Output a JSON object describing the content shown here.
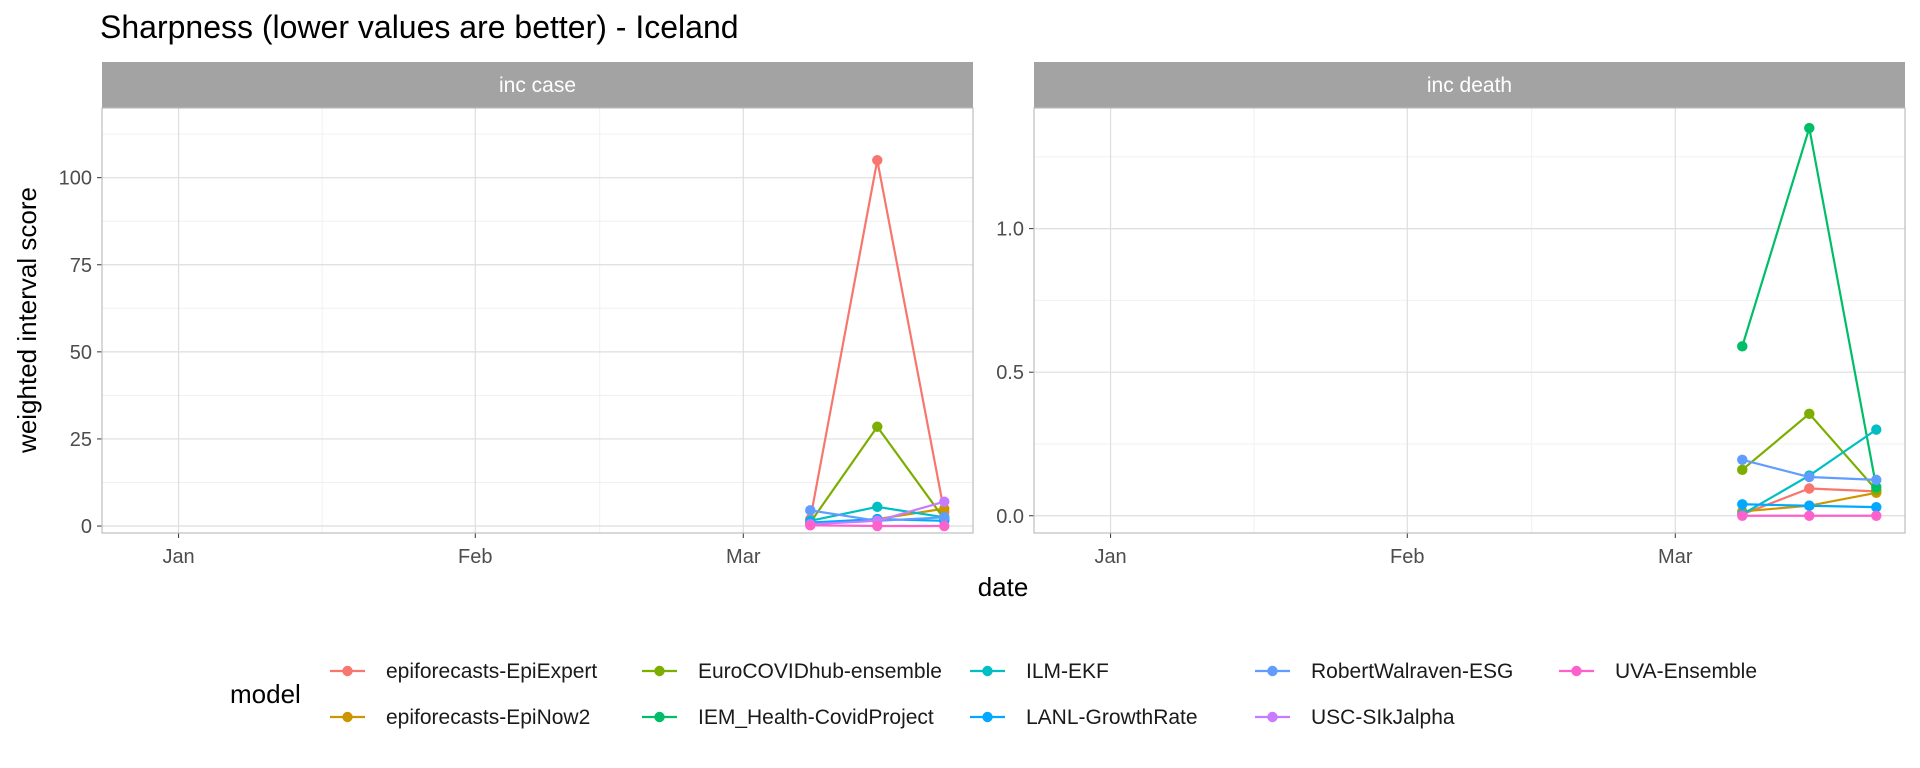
{
  "chart_data": {
    "type": "line",
    "title": "Sharpness (lower values are better) - Iceland",
    "xlabel": "date",
    "ylabel": "weighted interval score",
    "x": [
      "2021-03-08",
      "2021-03-15",
      "2021-03-22"
    ],
    "x_tick_labels": [
      "Jan",
      "Feb",
      "Mar"
    ],
    "grid": true,
    "legend": {
      "title": "model",
      "position": "bottom"
    },
    "models": [
      {
        "name": "epiforecasts-EpiExpert",
        "color": "#F8766D"
      },
      {
        "name": "epiforecasts-EpiNow2",
        "color": "#CD9600"
      },
      {
        "name": "EuroCOVIDhub-ensemble",
        "color": "#7CAE00"
      },
      {
        "name": "IEM_Health-CovidProject",
        "color": "#00BE67"
      },
      {
        "name": "ILM-EKF",
        "color": "#00BFC4"
      },
      {
        "name": "LANL-GrowthRate",
        "color": "#00A9FF"
      },
      {
        "name": "RobertWalraven-ESG",
        "color": "#619CFF"
      },
      {
        "name": "USC-SIkJalpha",
        "color": "#C77CFF"
      },
      {
        "name": "UVA-Ensemble",
        "color": "#FF61CC"
      }
    ],
    "panels": [
      {
        "strip": "inc case",
        "ylim": [
          -2,
          120
        ],
        "y_ticks": [
          0,
          25,
          50,
          75,
          100
        ],
        "series": [
          {
            "name": "epiforecasts-EpiExpert",
            "values": [
              2,
              105,
              4
            ]
          },
          {
            "name": "epiforecasts-EpiNow2",
            "values": [
              0.8,
              2,
              5
            ]
          },
          {
            "name": "EuroCOVIDhub-ensemble",
            "values": [
              1,
              28.5,
              2
            ]
          },
          {
            "name": "ILM-EKF",
            "values": [
              1.5,
              5.5,
              2.5
            ]
          },
          {
            "name": "LANL-GrowthRate",
            "values": [
              1,
              2,
              1.5
            ]
          },
          {
            "name": "RobertWalraven-ESG",
            "values": [
              4.5,
              1.5,
              2.5
            ]
          },
          {
            "name": "USC-SIkJalpha",
            "values": [
              0.5,
              1.5,
              7
            ]
          },
          {
            "name": "UVA-Ensemble",
            "values": [
              0.2,
              0,
              0
            ]
          }
        ]
      },
      {
        "strip": "inc death",
        "ylim": [
          -0.06,
          1.42
        ],
        "y_ticks": [
          0.0,
          0.5,
          1.0
        ],
        "series": [
          {
            "name": "epiforecasts-EpiExpert",
            "values": [
              0.005,
              0.095,
              0.085
            ]
          },
          {
            "name": "epiforecasts-EpiNow2",
            "values": [
              0.015,
              0.035,
              0.08
            ]
          },
          {
            "name": "EuroCOVIDhub-ensemble",
            "values": [
              0.16,
              0.355,
              0.09
            ]
          },
          {
            "name": "IEM_Health-CovidProject",
            "values": [
              0.59,
              1.35,
              0.1
            ]
          },
          {
            "name": "ILM-EKF",
            "values": [
              0.005,
              0.14,
              0.3
            ]
          },
          {
            "name": "LANL-GrowthRate",
            "values": [
              0.04,
              0.035,
              0.03
            ]
          },
          {
            "name": "RobertWalraven-ESG",
            "values": [
              0.195,
              0.135,
              0.125
            ]
          },
          {
            "name": "UVA-Ensemble",
            "values": [
              0.0,
              0.0,
              0.0
            ]
          }
        ]
      }
    ]
  }
}
